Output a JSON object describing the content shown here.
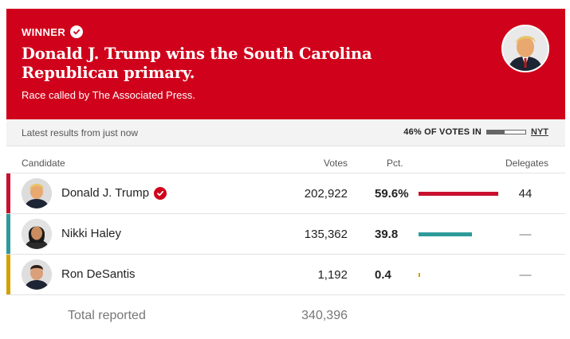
{
  "banner": {
    "winner_label": "WINNER",
    "headline": "Donald J. Trump wins the South Carolina Republican primary.",
    "call_note": "Race called by The Associated Press.",
    "background": "#d0021b"
  },
  "status": {
    "latest": "Latest results from just now",
    "votes_in": "46% OF VOTES IN",
    "votes_in_fraction": 0.46,
    "source_link": "NYT"
  },
  "table": {
    "headers": {
      "candidate": "Candidate",
      "votes": "Votes",
      "pct": "Pct.",
      "delegates": "Delegates"
    },
    "rows": [
      {
        "name": "Donald J. Trump",
        "winner": true,
        "votes": "202,922",
        "pct": "59.6%",
        "pct_value": 59.6,
        "delegates": "44",
        "color": "#c8102e",
        "icon": "check-icon"
      },
      {
        "name": "Nikki Haley",
        "winner": false,
        "votes": "135,362",
        "pct": "39.8",
        "pct_value": 39.8,
        "delegates": "—",
        "color": "#2e9a9a"
      },
      {
        "name": "Ron DeSantis",
        "winner": false,
        "votes": "1,192",
        "pct": "0.4",
        "pct_value": 0.4,
        "delegates": "—",
        "color": "#d4a000"
      }
    ],
    "total": {
      "label": "Total reported",
      "votes": "340,396"
    }
  }
}
